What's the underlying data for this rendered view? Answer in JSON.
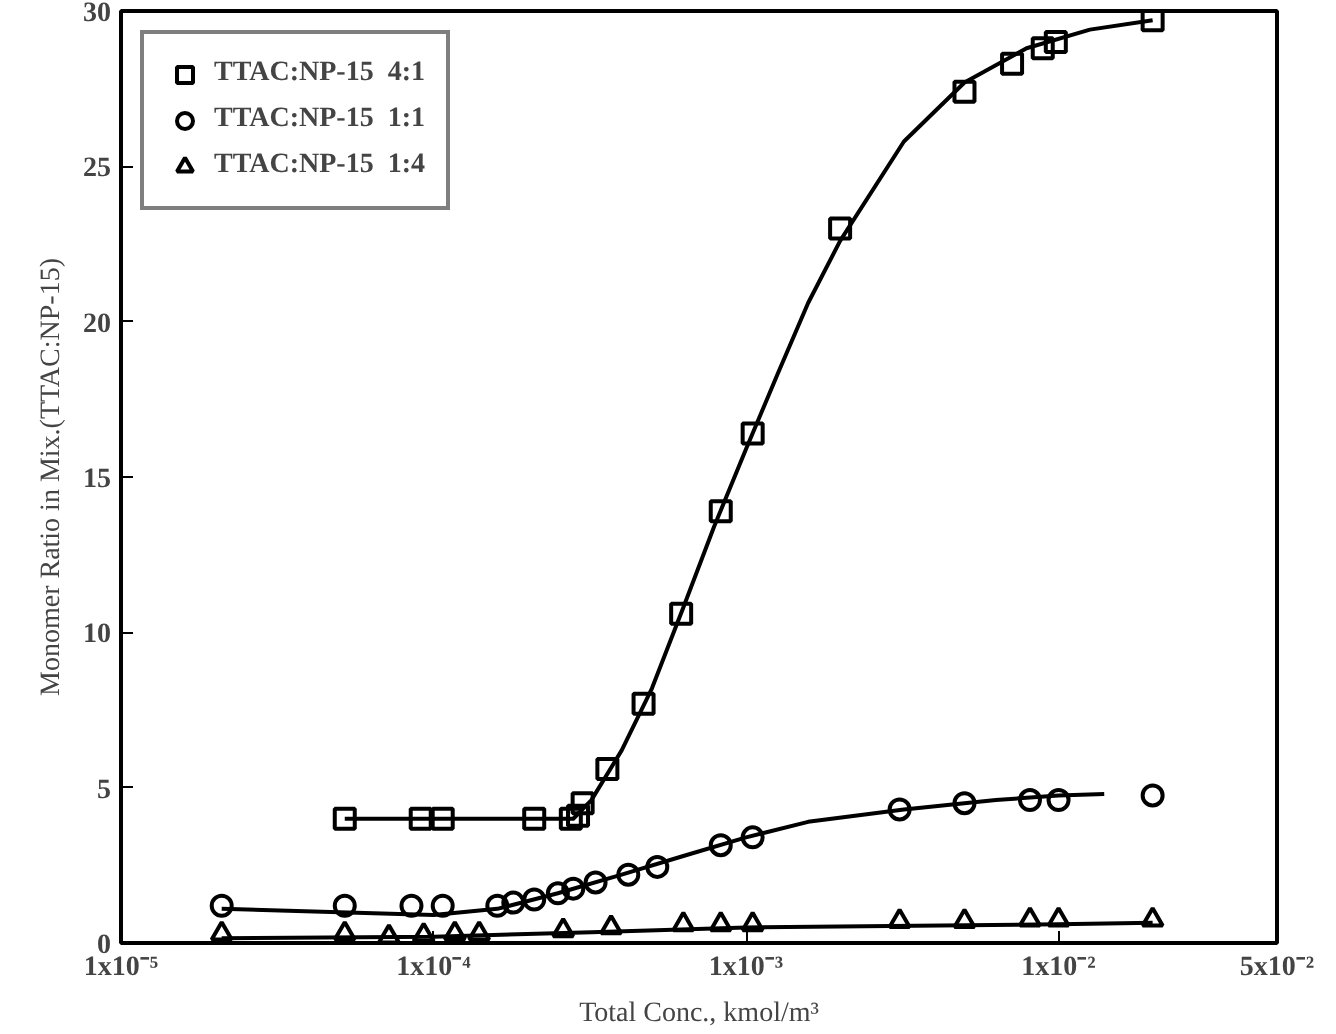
{
  "chart_data": {
    "type": "scatter",
    "xlabel": "Total Conc., kmol/m³",
    "ylabel": "Monomer Ratio in Mix.(TTAC:NP-15)",
    "log": "x",
    "xlim": [
      1e-05,
      0.05
    ],
    "xticks": [
      {
        "value": 1e-05,
        "label": "1x10⁻⁵"
      },
      {
        "value": 0.0001,
        "label": "1x10⁻⁴"
      },
      {
        "value": 0.001,
        "label": "1x10⁻³"
      },
      {
        "value": 0.01,
        "label": "1x10⁻²"
      },
      {
        "value": 0.05,
        "label": "5x10⁻²"
      }
    ],
    "ylim": [
      0,
      30
    ],
    "yticks": [
      0,
      5,
      10,
      15,
      20,
      25,
      30
    ],
    "grid": false,
    "legend": "top left",
    "series": [
      {
        "name": "TTAC:NP-15  4:1",
        "color": "#000000",
        "marker": "square",
        "x": [
          5.2e-05,
          9.1e-05,
          0.000107,
          0.00021,
          0.000275,
          0.00029,
          0.0003,
          0.00036,
          0.00047,
          0.00062,
          0.00083,
          0.00105,
          0.002,
          0.005,
          0.0071,
          0.0089,
          0.0098,
          0.02
        ],
        "values": [
          4.0,
          4.0,
          4.0,
          4.0,
          4.0,
          4.1,
          4.5,
          5.6,
          7.7,
          10.6,
          13.9,
          16.4,
          23.0,
          27.4,
          28.3,
          28.8,
          29.0,
          29.7
        ]
      },
      {
        "name": "TTAC:NP-15  1:1",
        "color": "#000000",
        "marker": "circle",
        "x": [
          2.1e-05,
          5.2e-05,
          8.5e-05,
          0.000107,
          0.00016,
          0.00018,
          0.00021,
          0.00025,
          0.00028,
          0.00033,
          0.00042,
          0.00052,
          0.00083,
          0.00105,
          0.0031,
          0.005,
          0.0081,
          0.01,
          0.02
        ],
        "values": [
          1.2,
          1.2,
          1.2,
          1.2,
          1.2,
          1.3,
          1.4,
          1.6,
          1.75,
          1.95,
          2.2,
          2.45,
          3.15,
          3.4,
          4.3,
          4.5,
          4.6,
          4.6,
          4.75
        ]
      },
      {
        "name": "TTAC:NP-15  1:4",
        "color": "#000000",
        "marker": "triangle",
        "x": [
          2.1e-05,
          5.2e-05,
          7.2e-05,
          9.3e-05,
          0.000117,
          0.00014,
          0.00026,
          0.00037,
          0.00063,
          0.00083,
          0.00105,
          0.0031,
          0.005,
          0.0081,
          0.01,
          0.02
        ],
        "values": [
          0.3,
          0.3,
          0.2,
          0.25,
          0.3,
          0.3,
          0.4,
          0.5,
          0.6,
          0.6,
          0.6,
          0.7,
          0.7,
          0.75,
          0.75,
          0.75
        ]
      },
      {
        "type": "line",
        "color": "#000000",
        "x": [
          5.2e-05,
          0.00028,
          0.00032,
          0.0004,
          0.0005,
          0.00063,
          0.00079,
          0.001,
          0.00126,
          0.00158,
          0.002,
          0.0032,
          0.005,
          0.0079,
          0.0126,
          0.02
        ],
        "values": [
          4.0,
          4.0,
          4.6,
          6.2,
          8.2,
          10.8,
          13.4,
          15.9,
          18.3,
          20.6,
          22.6,
          25.8,
          27.7,
          28.8,
          29.4,
          29.7
        ]
      },
      {
        "type": "line",
        "color": "#000000",
        "x": [
          2.1e-05,
          0.0001,
          0.00016,
          0.00025,
          0.0004,
          0.00063,
          0.001,
          0.00158,
          0.0032,
          0.0063,
          0.01,
          0.014
        ],
        "values": [
          1.1,
          0.9,
          1.1,
          1.6,
          2.2,
          2.8,
          3.4,
          3.9,
          4.3,
          4.6,
          4.75,
          4.8
        ]
      },
      {
        "type": "line",
        "color": "#000000",
        "x": [
          2.1e-05,
          0.0001,
          0.00032,
          0.001,
          0.01,
          0.02
        ],
        "values": [
          0.15,
          0.2,
          0.35,
          0.5,
          0.6,
          0.65
        ]
      }
    ]
  }
}
